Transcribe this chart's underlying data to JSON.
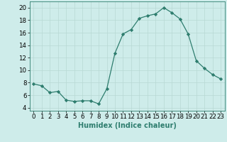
{
  "x": [
    0,
    1,
    2,
    3,
    4,
    5,
    6,
    7,
    8,
    9,
    10,
    11,
    12,
    13,
    14,
    15,
    16,
    17,
    18,
    19,
    20,
    21,
    22,
    23
  ],
  "y": [
    7.8,
    7.5,
    6.4,
    6.6,
    5.2,
    5.0,
    5.1,
    5.1,
    4.6,
    7.0,
    12.7,
    15.8,
    16.5,
    18.3,
    18.7,
    19.0,
    20.0,
    19.2,
    18.2,
    15.8,
    11.5,
    10.3,
    9.3,
    8.6
  ],
  "xlabel": "Humidex (Indice chaleur)",
  "xlim": [
    -0.5,
    23.5
  ],
  "ylim": [
    3.5,
    21.0
  ],
  "yticks": [
    4,
    6,
    8,
    10,
    12,
    14,
    16,
    18,
    20
  ],
  "xticks": [
    0,
    1,
    2,
    3,
    4,
    5,
    6,
    7,
    8,
    9,
    10,
    11,
    12,
    13,
    14,
    15,
    16,
    17,
    18,
    19,
    20,
    21,
    22,
    23
  ],
  "line_color": "#2e7d6e",
  "marker": "D",
  "marker_size": 2.2,
  "bg_color": "#ceecea",
  "grid_color_major": "#b8d8d4",
  "grid_color_minor": "#d4ecea",
  "label_fontsize": 7.0,
  "tick_fontsize": 6.2
}
